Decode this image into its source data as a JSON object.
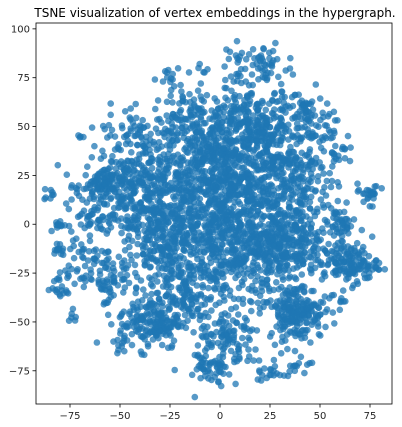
{
  "chart_data": {
    "type": "scatter",
    "title": "TSNE visualization of vertex embeddings in the hypergraph.",
    "xlabel": "",
    "ylabel": "",
    "xlim": [
      -92,
      86
    ],
    "ylim": [
      -92,
      103
    ],
    "xticks": [
      -75,
      -50,
      -25,
      0,
      25,
      50,
      75
    ],
    "yticks": [
      -75,
      -50,
      -25,
      0,
      25,
      50,
      75,
      100
    ],
    "tick_labels": {
      "x": [
        "−75",
        "−50",
        "−25",
        "0",
        "25",
        "50",
        "75"
      ],
      "y": [
        "−75",
        "−50",
        "−25",
        "0",
        "25",
        "50",
        "75",
        "100"
      ]
    },
    "grid": false,
    "color": "#1f77b4",
    "clusters": [
      {
        "cx": 0,
        "cy": 0,
        "sx": 22,
        "sy": 22,
        "n": 900
      },
      {
        "cx": 10,
        "cy": 25,
        "sx": 18,
        "sy": 18,
        "n": 420
      },
      {
        "cx": -45,
        "cy": 20,
        "sx": 12,
        "sy": 8,
        "n": 160
      },
      {
        "cx": -60,
        "cy": 20,
        "sx": 6,
        "sy": 4,
        "n": 80
      },
      {
        "cx": -35,
        "cy": -50,
        "sx": 8,
        "sy": 7,
        "n": 170
      },
      {
        "cx": -15,
        "cy": -40,
        "sx": 6,
        "sy": 6,
        "n": 80
      },
      {
        "cx": 38,
        "cy": -45,
        "sx": 7,
        "sy": 7,
        "n": 190
      },
      {
        "cx": 65,
        "cy": -20,
        "sx": 7,
        "sy": 5,
        "n": 140
      },
      {
        "cx": 35,
        "cy": 25,
        "sx": 12,
        "sy": 10,
        "n": 140
      },
      {
        "cx": 45,
        "cy": 50,
        "sx": 8,
        "sy": 6,
        "n": 70
      },
      {
        "cx": 22,
        "cy": 62,
        "sx": 10,
        "sy": 10,
        "n": 110
      },
      {
        "cx": -15,
        "cy": 55,
        "sx": 8,
        "sy": 6,
        "n": 90
      },
      {
        "cx": 5,
        "cy": 55,
        "sx": 6,
        "sy": 6,
        "n": 60
      },
      {
        "cx": -40,
        "cy": 45,
        "sx": 10,
        "sy": 8,
        "n": 90
      },
      {
        "cx": -30,
        "cy": 25,
        "sx": 8,
        "sy": 8,
        "n": 70
      },
      {
        "cx": 5,
        "cy": -60,
        "sx": 8,
        "sy": 8,
        "n": 110
      },
      {
        "cx": -5,
        "cy": -75,
        "sx": 6,
        "sy": 4,
        "n": 40
      },
      {
        "cx": 17,
        "cy": 83,
        "sx": 8,
        "sy": 5,
        "n": 50
      },
      {
        "cx": -25,
        "cy": 75,
        "sx": 3,
        "sy": 3,
        "n": 14
      },
      {
        "cx": -10,
        "cy": 80,
        "sx": 2,
        "sy": 2,
        "n": 6
      },
      {
        "cx": 42,
        "cy": 62,
        "sx": 3,
        "sy": 3,
        "n": 14
      },
      {
        "cx": -65,
        "cy": -15,
        "sx": 8,
        "sy": 8,
        "n": 70
      },
      {
        "cx": -80,
        "cy": -33,
        "sx": 2,
        "sy": 4,
        "n": 18
      },
      {
        "cx": -80,
        "cy": 0,
        "sx": 2,
        "sy": 2,
        "n": 12
      },
      {
        "cx": -85,
        "cy": 15,
        "sx": 1.5,
        "sy": 1.5,
        "n": 8
      },
      {
        "cx": -80,
        "cy": -13,
        "sx": 2,
        "sy": 2,
        "n": 12
      },
      {
        "cx": 75,
        "cy": 15,
        "sx": 2.5,
        "sy": 2.5,
        "n": 22
      },
      {
        "cx": 60,
        "cy": 0,
        "sx": 4,
        "sy": 4,
        "n": 40
      },
      {
        "cx": 60,
        "cy": 35,
        "sx": 3,
        "sy": 3,
        "n": 14
      },
      {
        "cx": 60,
        "cy": -38,
        "sx": 2,
        "sy": 2,
        "n": 8
      },
      {
        "cx": -55,
        "cy": -30,
        "sx": 6,
        "sy": 6,
        "n": 50
      },
      {
        "cx": -50,
        "cy": -63,
        "sx": 2,
        "sy": 2,
        "n": 8
      },
      {
        "cx": -70,
        "cy": 44,
        "sx": 1,
        "sy": 1,
        "n": 4
      },
      {
        "cx": -75,
        "cy": -47,
        "sx": 2,
        "sy": 2,
        "n": 6
      },
      {
        "cx": -60,
        "cy": 5,
        "sx": 6,
        "sy": 5,
        "n": 40
      },
      {
        "cx": 25,
        "cy": -15,
        "sx": 12,
        "sy": 10,
        "n": 220
      },
      {
        "cx": -25,
        "cy": -10,
        "sx": 10,
        "sy": 10,
        "n": 200
      },
      {
        "cx": 40,
        "cy": -5,
        "sx": 8,
        "sy": 8,
        "n": 90
      },
      {
        "cx": 25,
        "cy": -75,
        "sx": 4,
        "sy": 3,
        "n": 20
      },
      {
        "cx": 40,
        "cy": -72,
        "sx": 3,
        "sy": 3,
        "n": 14
      },
      {
        "cx": -5,
        "cy": 37,
        "sx": 6,
        "sy": 6,
        "n": 70
      },
      {
        "cx": 20,
        "cy": 45,
        "sx": 6,
        "sy": 6,
        "n": 70
      },
      {
        "cx": -35,
        "cy": 5,
        "sx": 6,
        "sy": 6,
        "n": 50
      }
    ]
  }
}
